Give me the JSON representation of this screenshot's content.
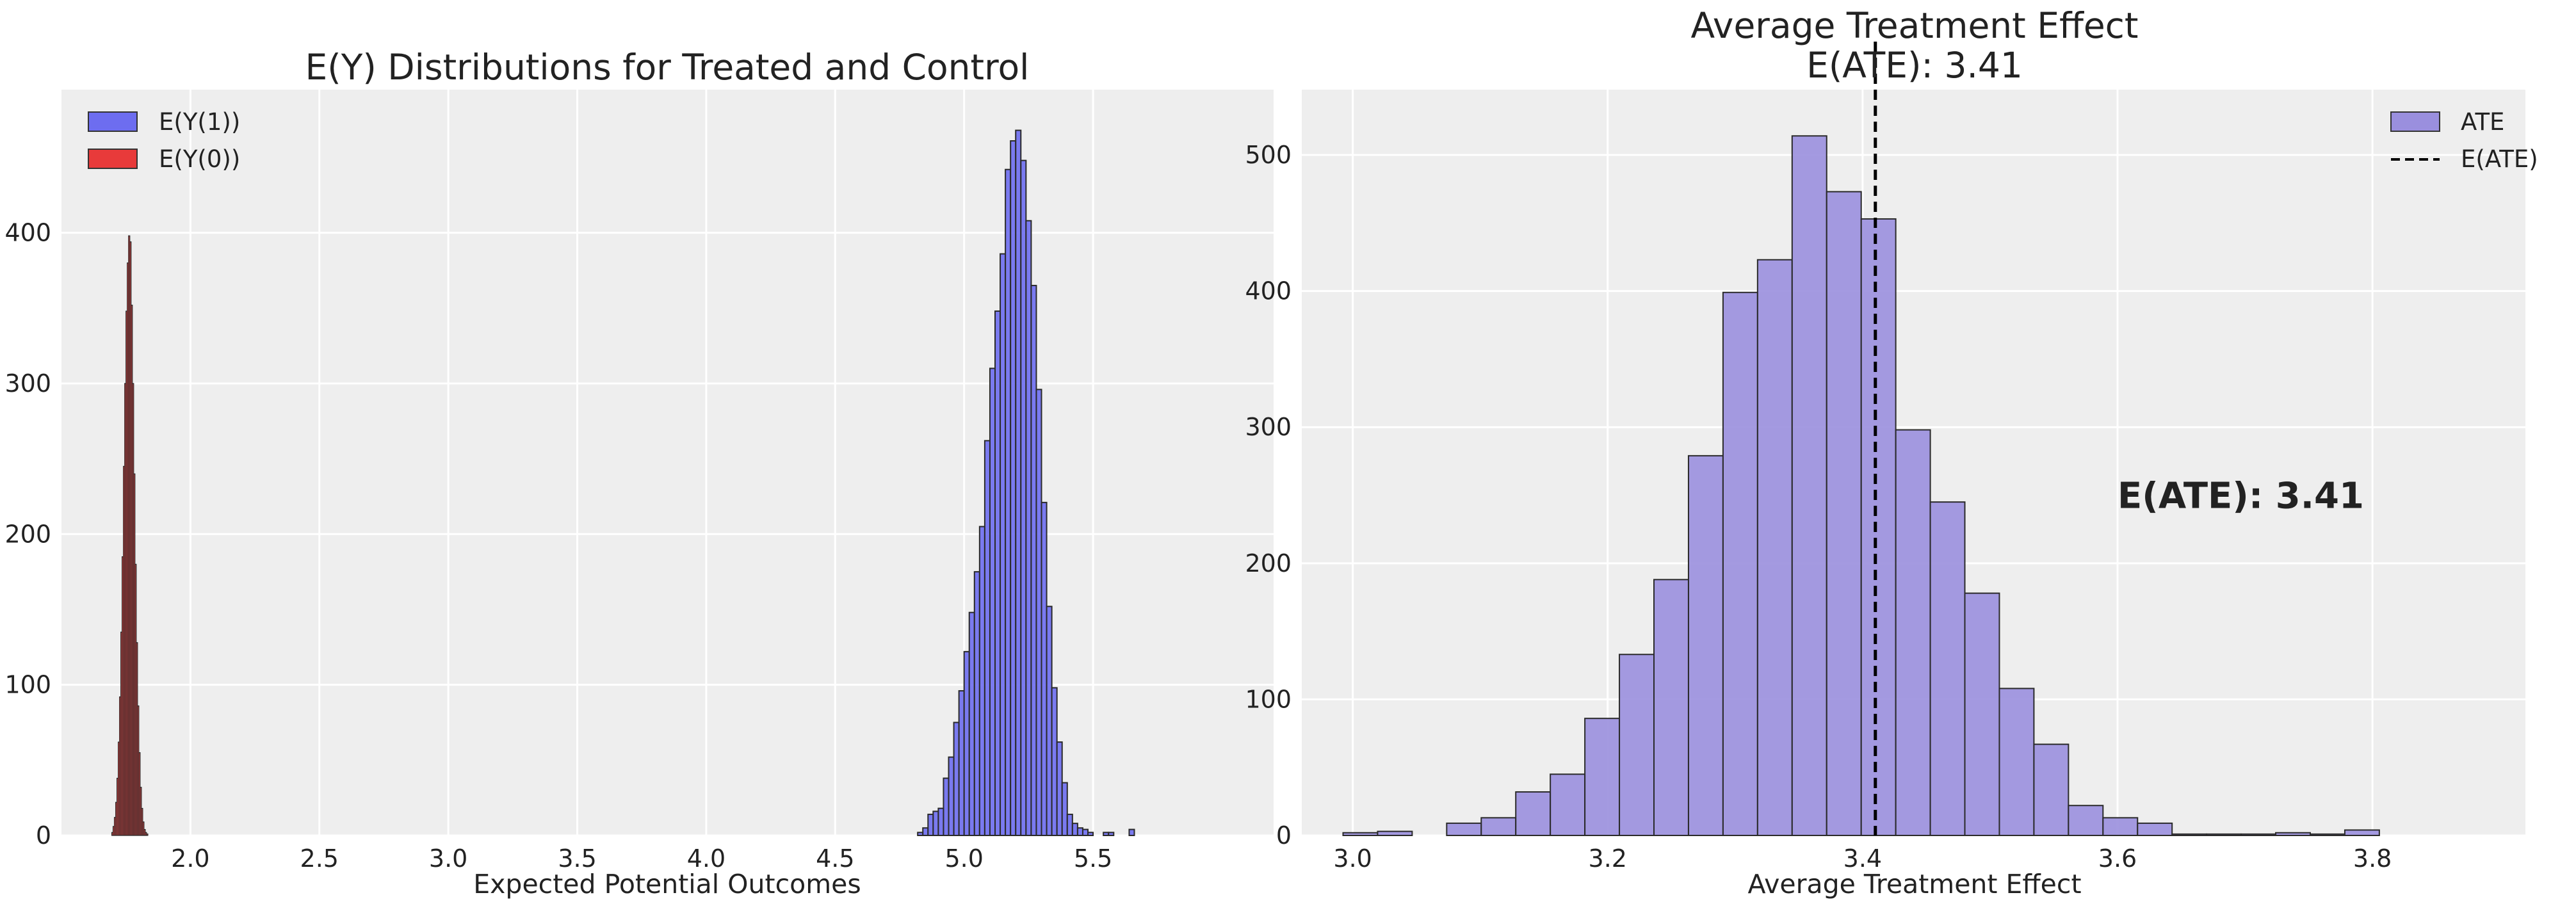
{
  "chart_data": [
    {
      "type": "histogram",
      "title": "E(Y) Distributions for Treated and Control",
      "xlabel": "Expected Potential Outcomes",
      "ylabel": "",
      "xlim": [
        1.5,
        6.2
      ],
      "ylim": [
        0,
        495
      ],
      "xticks": [
        2.0,
        2.5,
        3.0,
        3.5,
        4.0,
        4.5,
        5.0,
        5.5
      ],
      "xtick_labels": [
        "2.0",
        "2.5",
        "3.0",
        "3.5",
        "4.0",
        "4.5",
        "5.0",
        "5.5"
      ],
      "yticks": [
        0,
        100,
        200,
        300,
        400
      ],
      "ytick_labels": [
        "0",
        "100",
        "200",
        "300",
        "400"
      ],
      "grid": true,
      "legend_position": "top-left",
      "series": [
        {
          "name": "E(Y(1))",
          "color": "#6d6df0",
          "bin_start": 4.82,
          "bin_width": 0.02,
          "counts": [
            2,
            5,
            14,
            16,
            18,
            38,
            52,
            75,
            96,
            122,
            148,
            175,
            205,
            262,
            310,
            348,
            386,
            442,
            461,
            468,
            448,
            408,
            365,
            296,
            221,
            152,
            98,
            62,
            35,
            14,
            8,
            5,
            4,
            2,
            0,
            0,
            2,
            2,
            0,
            0,
            0,
            4
          ]
        },
        {
          "name": "E(Y(0))",
          "color": "#e83a3a",
          "bin_start": 1.695,
          "bin_width": 0.005,
          "counts": [
            2,
            6,
            12,
            22,
            38,
            62,
            92,
            135,
            185,
            245,
            300,
            348,
            380,
            398,
            394,
            352,
            300,
            240,
            180,
            128,
            86,
            55,
            32,
            18,
            9,
            4,
            2,
            1
          ]
        }
      ]
    },
    {
      "type": "histogram",
      "title": "Average Treatment Effect\nE(ATE): 3.41",
      "xlabel": "Average Treatment Effect",
      "ylabel": "",
      "xlim": [
        2.96,
        3.92
      ],
      "ylim": [
        0,
        548
      ],
      "xticks": [
        3.0,
        3.2,
        3.4,
        3.6,
        3.8
      ],
      "xtick_labels": [
        "3.0",
        "3.2",
        "3.4",
        "3.6",
        "3.8"
      ],
      "yticks": [
        0,
        100,
        200,
        300,
        400,
        500
      ],
      "ytick_labels": [
        "0",
        "100",
        "200",
        "300",
        "400",
        "500"
      ],
      "grid": true,
      "legend_position": "top-right",
      "series": [
        {
          "name": "ATE",
          "color": "#9a8fde",
          "bin_start": 2.9924,
          "bin_width": 0.0271,
          "counts": [
            2,
            3,
            0,
            9,
            13,
            32,
            45,
            86,
            133,
            188,
            279,
            399,
            423,
            514,
            473,
            453,
            298,
            245,
            178,
            108,
            67,
            22,
            13,
            9,
            1,
            1,
            1,
            2,
            1,
            4
          ]
        }
      ],
      "vline": {
        "name": "E(ATE)",
        "x": 3.41,
        "color": "#000000"
      },
      "annotation": {
        "text": "E(ATE): 3.41",
        "x": 3.6,
        "y": 250
      }
    }
  ]
}
